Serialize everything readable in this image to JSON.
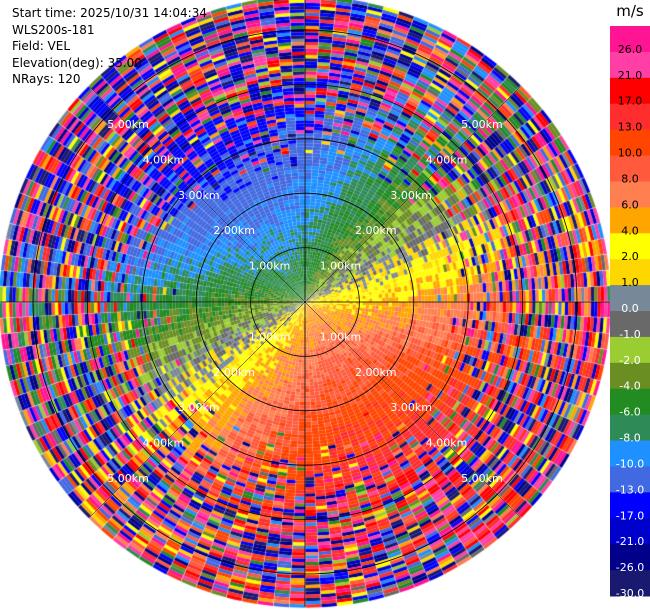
{
  "info": {
    "start_time": "Start time: 2025/10/31 14:04:34",
    "instrument": "WLS200s-181",
    "field": "Field: VEL",
    "elevation": "Elevation(deg): 35.00",
    "nrays": "NRays: 120"
  },
  "chart_data": {
    "type": "heatmap",
    "projection": "polar-ppi",
    "field": "VEL",
    "units": "m/s",
    "elevation_deg": 35.0,
    "n_rays": 120,
    "range_rings_km": [
      1.0,
      2.0,
      3.0,
      4.0,
      5.0
    ],
    "ring_label_text": [
      "1.00km",
      "2.00km",
      "3.00km",
      "4.00km",
      "5.00km"
    ],
    "max_range_km": 5.6,
    "colorbar": {
      "label": "m/s",
      "tick_labels": [
        "26.0",
        "21.0",
        "17.0",
        "13.0",
        "10.0",
        "8.0",
        "6.0",
        "4.0",
        "2.0",
        "1.0",
        "0.0",
        "-1.0",
        "-2.0",
        "-4.0",
        "-6.0",
        "-8.0",
        "-10.0",
        "-13.0",
        "-17.0",
        "-21.0",
        "-26.0",
        "-30.0"
      ],
      "bins_top_to_bottom": [
        {
          "max": 30,
          "min": 26,
          "color": "#ff1493"
        },
        {
          "max": 26,
          "min": 21,
          "color": "#ff3fa6"
        },
        {
          "max": 21,
          "min": 17,
          "color": "#ff0000"
        },
        {
          "max": 17,
          "min": 13,
          "color": "#ff2d2d"
        },
        {
          "max": 13,
          "min": 10,
          "color": "#ff4500"
        },
        {
          "max": 10,
          "min": 8,
          "color": "#ff5a3c"
        },
        {
          "max": 8,
          "min": 6,
          "color": "#ff7f50"
        },
        {
          "max": 6,
          "min": 4,
          "color": "#ffa500"
        },
        {
          "max": 4,
          "min": 2,
          "color": "#ffff00"
        },
        {
          "max": 2,
          "min": 1,
          "color": "#ffd700"
        },
        {
          "max": 1,
          "min": 0,
          "color": "#778899"
        },
        {
          "max": 0,
          "min": -1,
          "color": "#696969"
        },
        {
          "max": -1,
          "min": -2,
          "color": "#9acd32"
        },
        {
          "max": -2,
          "min": -4,
          "color": "#6b8e23"
        },
        {
          "max": -4,
          "min": -6,
          "color": "#228b22"
        },
        {
          "max": -6,
          "min": -8,
          "color": "#2e8b57"
        },
        {
          "max": -8,
          "min": -10,
          "color": "#1e90ff"
        },
        {
          "max": -10,
          "min": -13,
          "color": "#4169e1"
        },
        {
          "max": -13,
          "min": -17,
          "color": "#0000ff"
        },
        {
          "max": -17,
          "min": -21,
          "color": "#0000cd"
        },
        {
          "max": -21,
          "min": -26,
          "color": "#00008b"
        },
        {
          "max": -26,
          "min": -30,
          "color": "#191970"
        }
      ]
    },
    "wind_pattern": {
      "toward_sector_center_deg": 150,
      "away_sector_center_deg": 330,
      "inner_velocity_ms": 5,
      "outer_velocity_ms": 17,
      "noisy_beyond_km": 2.3
    }
  }
}
